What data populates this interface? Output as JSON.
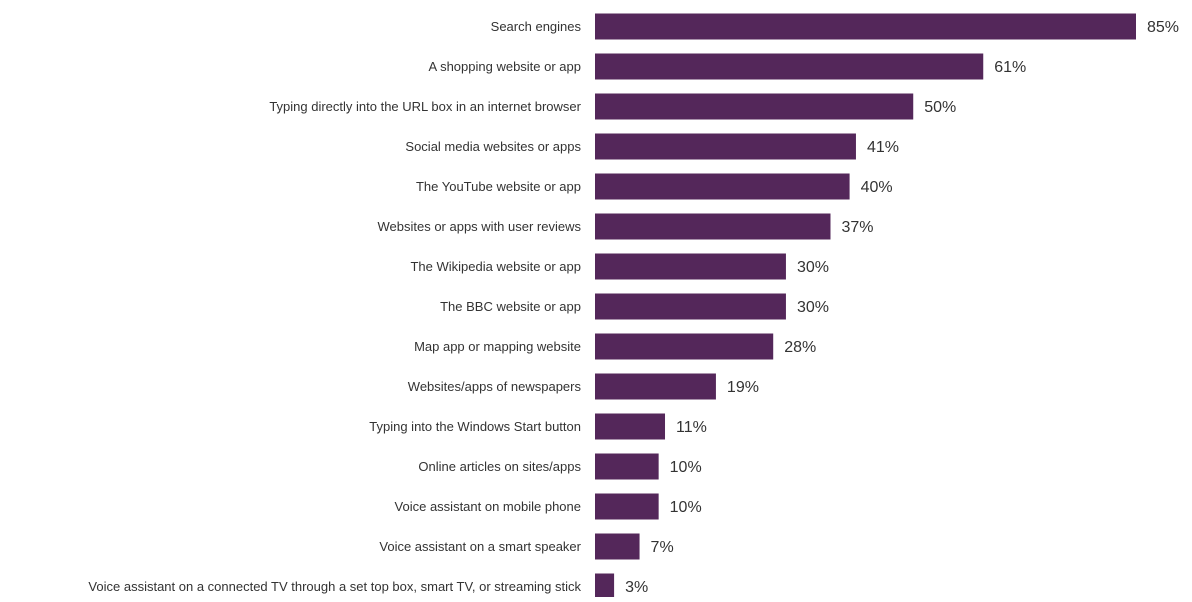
{
  "chart_data": {
    "type": "bar",
    "orientation": "horizontal",
    "categories": [
      "Search engines",
      "A shopping website or app",
      "Typing directly into the URL box in an internet browser",
      "Social media websites or apps",
      "The YouTube website or app",
      "Websites or apps with user reviews",
      "The Wikipedia website or app",
      "The BBC website or app",
      "Map app or mapping website",
      "Websites/apps of newspapers",
      "Typing into the Windows Start button",
      "Online articles on sites/apps",
      "Voice assistant on mobile phone",
      "Voice assistant on a smart speaker",
      "Voice assistant on a connected TV through a set top box, smart TV, or streaming stick"
    ],
    "values": [
      85,
      61,
      50,
      41,
      40,
      37,
      30,
      30,
      28,
      19,
      11,
      10,
      10,
      7,
      3
    ],
    "value_labels": [
      "85%",
      "61%",
      "50%",
      "41%",
      "40%",
      "37%",
      "30%",
      "30%",
      "28%",
      "19%",
      "11%",
      "10%",
      "10%",
      "7%",
      "3%"
    ],
    "title": "",
    "xlabel": "",
    "ylabel": "",
    "xlim": [
      0,
      85
    ],
    "grid": false,
    "legend": "none",
    "bar_color": "#54275a"
  }
}
